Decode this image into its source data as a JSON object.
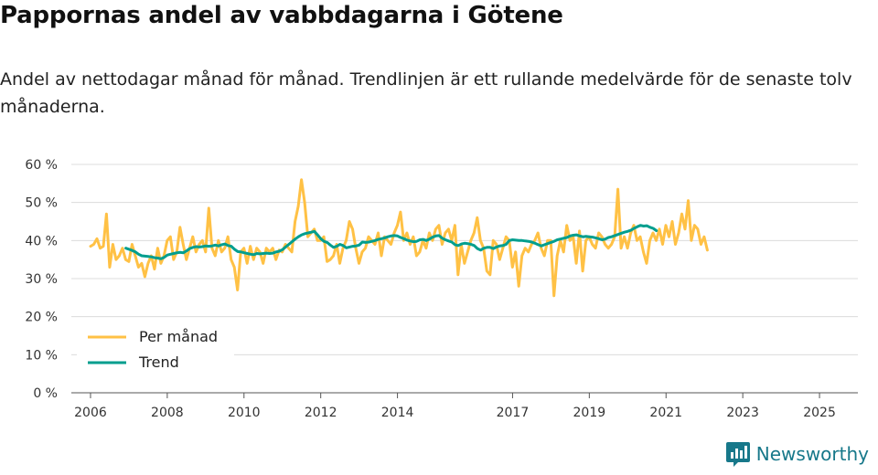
{
  "title": "Pappornas andel av vabbdagarna i Götene",
  "subtitle": "Andel av nettodagar månad för månad. Trendlinjen är ett rullande medelvärde för de senaste tolv månaderna.",
  "brand": {
    "name": "Newsworthy",
    "icon": "bar-chart-speech-icon",
    "color": "#17788a"
  },
  "chart_data": {
    "type": "line",
    "title": "Pappornas andel av vabbdagarna i Götene",
    "xlabel": "",
    "ylabel": "",
    "ylim": [
      0,
      60
    ],
    "yticks": [
      0,
      10,
      20,
      30,
      40,
      50,
      60
    ],
    "ytick_labels": [
      "0 %",
      "10 %",
      "20 %",
      "30 %",
      "40 %",
      "50 %",
      "60 %"
    ],
    "xlim": [
      2005.5,
      2026.0
    ],
    "xticks": [
      2006,
      2008,
      2010,
      2012,
      2014,
      2017,
      2019,
      2021,
      2023,
      2025
    ],
    "xtick_labels": [
      "2006",
      "2008",
      "2010",
      "2012",
      "2014",
      "2017",
      "2019",
      "2021",
      "2023",
      "2025"
    ],
    "grid": "horizontal",
    "legend_position": "bottom-left",
    "series": [
      {
        "name": "Per månad",
        "color": "#ffc145",
        "x_start": 2006.0,
        "step": 0.0833,
        "values": [
          38.5,
          39,
          40.5,
          38,
          38.5,
          47,
          33,
          39,
          35,
          36,
          38,
          35,
          34.5,
          39,
          36,
          33,
          34,
          30.5,
          34,
          36,
          32.5,
          38,
          34,
          36,
          40,
          41,
          35,
          37,
          43.5,
          39,
          35,
          38,
          41,
          37,
          39,
          40,
          37,
          48.5,
          38,
          36,
          40,
          37,
          38,
          41,
          35,
          33,
          27,
          37,
          38,
          34,
          38.5,
          35,
          38,
          37,
          34,
          38,
          37,
          38,
          35,
          37.5,
          37,
          39,
          38,
          37,
          45,
          49,
          56,
          50,
          41,
          42,
          43,
          40,
          40,
          41,
          34.5,
          35,
          36,
          39,
          34,
          38,
          40,
          45,
          43,
          38,
          34,
          37,
          38,
          41,
          40,
          39,
          42,
          36,
          41,
          40,
          39,
          42,
          44,
          47.5,
          40,
          42,
          39,
          41,
          36,
          37,
          40,
          38,
          42,
          40,
          43,
          44,
          39,
          42,
          43,
          40,
          44,
          31,
          39,
          34,
          37,
          40,
          42,
          46,
          40,
          38,
          32,
          31,
          40,
          39,
          35,
          38,
          41,
          40,
          33,
          37,
          28,
          36,
          38,
          37,
          39,
          40,
          42,
          38,
          36,
          40,
          40,
          25.5,
          36,
          40,
          37,
          44,
          40,
          41,
          34,
          42.5,
          32,
          40,
          41,
          39,
          38,
          42,
          41,
          39,
          38,
          39,
          41,
          53.5,
          38,
          41,
          38,
          42,
          44,
          40,
          41,
          37,
          34,
          40,
          42,
          40,
          43,
          39,
          44,
          41,
          45,
          39,
          42,
          47,
          43,
          50.5,
          40,
          44,
          43,
          39,
          41,
          37.5
        ]
      },
      {
        "name": "Trend",
        "color": "#009e8e",
        "x_start": 2006.92,
        "step": 0.0833,
        "values": [
          38,
          37.7,
          37.4,
          37,
          36.4,
          36,
          35.9,
          35.8,
          35.7,
          35.5,
          35.4,
          35.2,
          35.6,
          36.2,
          36.4,
          36.6,
          36.8,
          36.9,
          36.8,
          37.3,
          37.9,
          38.2,
          38.4,
          38.3,
          38.4,
          38.6,
          38.5,
          38.6,
          38.8,
          38.6,
          38.9,
          39.1,
          38.7,
          38.5,
          37.7,
          37.1,
          37,
          36.8,
          36.6,
          36.4,
          36.3,
          36.6,
          36.5,
          36.6,
          36.7,
          36.6,
          36.7,
          37,
          37.2,
          37.6,
          38.3,
          39,
          39.7,
          40.4,
          41,
          41.5,
          41.8,
          42,
          42.2,
          42.4,
          41.5,
          40.5,
          39.8,
          39.5,
          38.8,
          38.2,
          38.5,
          39,
          38.7,
          38.1,
          38.3,
          38.5,
          38.6,
          38.8,
          39.6,
          39.5,
          39.6,
          39.8,
          40,
          40.3,
          40.5,
          40.7,
          41,
          41.2,
          41.3,
          41.2,
          40.8,
          40.5,
          40.1,
          39.9,
          39.7,
          39.8,
          40.2,
          40.3,
          40,
          40.4,
          40.9,
          41.2,
          41.3,
          40.6,
          40.2,
          39.9,
          39.6,
          38.9,
          38.7,
          39.1,
          39.3,
          39.2,
          39,
          38.7,
          37.9,
          37.5,
          38,
          38.2,
          38.2,
          37.9,
          38.3,
          38.6,
          38.7,
          39,
          40,
          40.2,
          40.1,
          40,
          40,
          39.9,
          39.8,
          39.6,
          39.3,
          38.9,
          38.6,
          38.9,
          39.2,
          39.5,
          39.8,
          40.2,
          40.4,
          40.6,
          40.8,
          41.2,
          41.4,
          41.5,
          41.2,
          41,
          41.1,
          41,
          40.9,
          40.7,
          40.5,
          40.2,
          40.4,
          40.8,
          41,
          41.3,
          41.6,
          41.9,
          42.2,
          42.4,
          42.7,
          43.2,
          43.6,
          44,
          43.8,
          43.9,
          43.5,
          43.2,
          42.6
        ]
      }
    ]
  }
}
